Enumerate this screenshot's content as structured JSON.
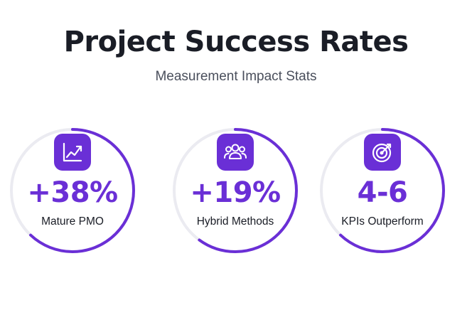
{
  "header": {
    "title": "Project Success Rates",
    "subtitle": "Measurement Impact Stats"
  },
  "colors": {
    "accent": "#6a2fd6",
    "track": "#ebebf1",
    "text": "#1a1d26",
    "muted": "#4a4f5c"
  },
  "stats": [
    {
      "value": "+38%",
      "label": "Mature PMO",
      "icon": "trending-chart-icon",
      "progress": 0.62
    },
    {
      "value": "+19%",
      "label": "Hybrid Methods",
      "icon": "team-users-icon",
      "progress": 0.6
    },
    {
      "value": "4-6",
      "label": "KPIs Outperform",
      "icon": "target-arrow-icon",
      "progress": 0.62
    }
  ]
}
